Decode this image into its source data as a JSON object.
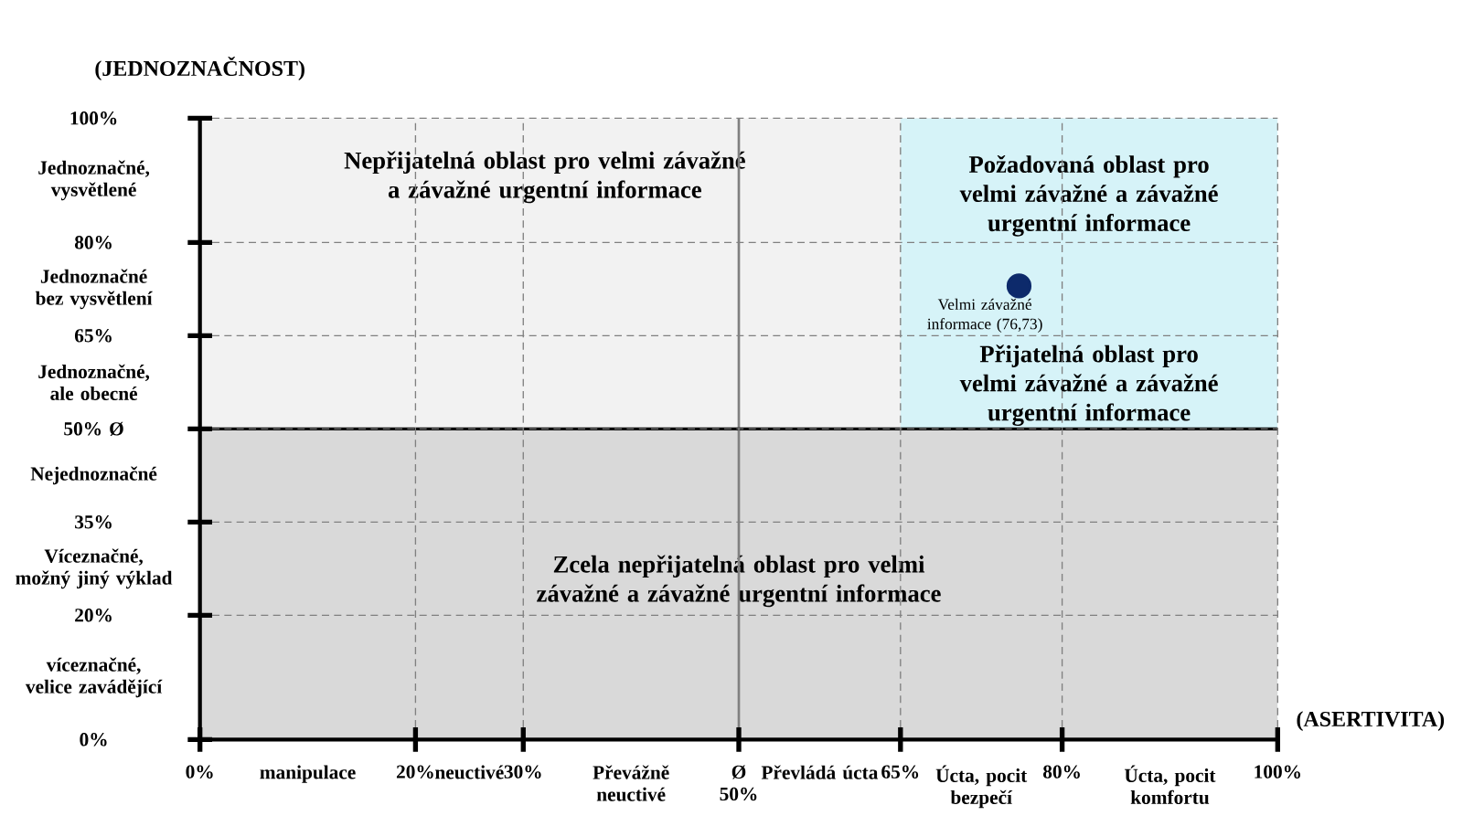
{
  "chart_data": {
    "type": "scatter",
    "xlabel": "(ASERTIVITA)",
    "ylabel": "(JEDNOZNAČNOST)",
    "xlim": [
      0,
      100
    ],
    "ylim": [
      0,
      100
    ],
    "xticks": [
      {
        "value": 0,
        "label": "0%"
      },
      {
        "value": 10,
        "label": "manipulace"
      },
      {
        "value": 20,
        "label": "20%"
      },
      {
        "value": 25,
        "label": "neuctivé"
      },
      {
        "value": 30,
        "label": "30%"
      },
      {
        "value": 40,
        "label": "Převážně neuctivé"
      },
      {
        "value": 50,
        "label": "Ø 50%"
      },
      {
        "value": 57.5,
        "label": "Převládá úcta"
      },
      {
        "value": 65,
        "label": "65%"
      },
      {
        "value": 72.5,
        "label": "Úcta, pocit bezpečí"
      },
      {
        "value": 80,
        "label": "80%"
      },
      {
        "value": 90,
        "label": "Úcta, pocit komfortu"
      },
      {
        "value": 100,
        "label": "100%"
      }
    ],
    "yticks": [
      {
        "value": 0,
        "label": "0%"
      },
      {
        "value": 10,
        "label": "víceznačné, velice zavádějící"
      },
      {
        "value": 20,
        "label": "20%"
      },
      {
        "value": 27.5,
        "label": "Víceznačné, možný jiný výklad"
      },
      {
        "value": 35,
        "label": "35%"
      },
      {
        "value": 42.5,
        "label": "Nejednoznačné"
      },
      {
        "value": 50,
        "label": "50% Ø"
      },
      {
        "value": 57.5,
        "label": "Jednoznačné, ale obecné"
      },
      {
        "value": 65,
        "label": "65%"
      },
      {
        "value": 72.5,
        "label": "Jednoznačné bez vysvětlení"
      },
      {
        "value": 80,
        "label": "80%"
      },
      {
        "value": 90,
        "label": "Jednoznačné, vysvětlené"
      },
      {
        "value": 100,
        "label": "100%"
      }
    ],
    "grid": true,
    "marker": "circle",
    "series": [
      {
        "color": "#0d2a6b",
        "x": [
          76
        ],
        "values": [
          73
        ]
      }
    ],
    "bands": [
      {
        "axis": "y",
        "from": 50,
        "to": 100,
        "label": "Nepřijatelná oblast pro velmi závažné a závažné urgentní informace",
        "color": "#f2f2f2"
      },
      {
        "axis": "x",
        "from": 65,
        "to": 100,
        "label": "Požadovaná oblast pro velmi závažné a závažné urgentní informace",
        "color": "#d6f3f8"
      },
      {
        "axis": "y",
        "from": 0,
        "to": 50,
        "label": "Zcela nepřijatelná oblast pro velmi závažné a závažné urgentní informace",
        "color": "#d9d9d9"
      }
    ],
    "ref_lines": [
      {
        "axis": "x",
        "value": 50,
        "color": "#808080"
      },
      {
        "axis": "y",
        "value": 50,
        "color": "#000000"
      }
    ],
    "annotations": [
      "Přijatelná oblast pro velmi závažné a závažné urgentní informace",
      {
        "text": "Velmi závažné informace (76,73)",
        "x": 76,
        "y": 73
      }
    ]
  }
}
